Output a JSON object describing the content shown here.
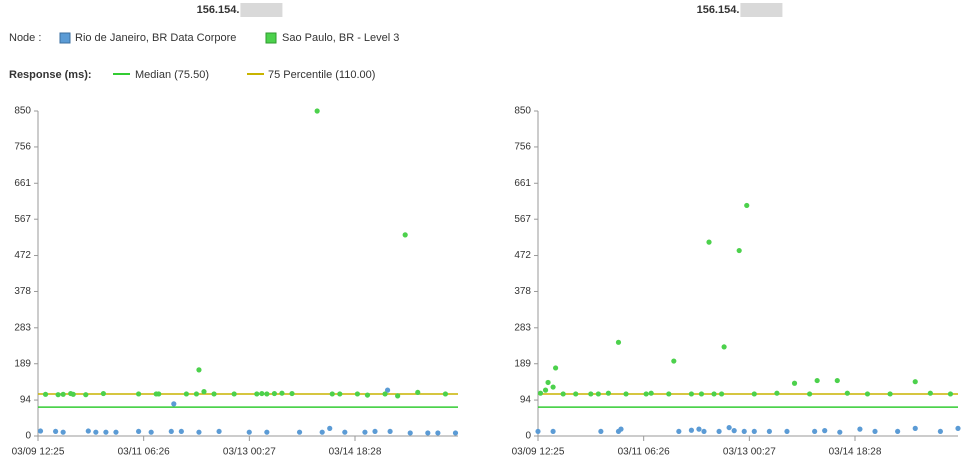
{
  "legend": {
    "node_label": "Node :",
    "response_label": "Response (ms):"
  },
  "reference_lines": [
    {
      "name": "Median (75.50)",
      "value": 75.5,
      "color": "#33cc33"
    },
    {
      "name": "75 Percentile (110.00)",
      "value": 110,
      "color": "#c8b400"
    }
  ],
  "chart_data": [
    {
      "type": "scatter",
      "title": "156.154.",
      "xlim": [
        "03/09 12:25",
        "03/16 11:25"
      ],
      "xticks": [
        "03/09 12:25",
        "03/11 06:26",
        "03/13 00:27",
        "03/14 18:28"
      ],
      "ylim": [
        0,
        850
      ],
      "yticks": [
        0,
        94,
        189,
        283,
        378,
        472,
        567,
        661,
        756,
        850
      ],
      "series": [
        {
          "name": "Rio de Janeiro, BR Data Corpore",
          "color": "#5b9bd5",
          "x": [
            "03/09 13:25",
            "03/09 19:25",
            "03/09 22:25",
            "03/10 08:25",
            "03/10 11:25",
            "03/10 15:25",
            "03/10 19:25",
            "03/11 04:25",
            "03/11 09:25",
            "03/11 17:25",
            "03/11 18:25",
            "03/11 21:25",
            "03/12 04:25",
            "03/12 12:25",
            "03/13 00:25",
            "03/13 07:25",
            "03/13 20:25",
            "03/14 05:25",
            "03/14 08:25",
            "03/14 14:25",
            "03/14 22:25",
            "03/15 02:25",
            "03/15 07:25",
            "03/15 08:25",
            "03/15 16:25",
            "03/15 23:25",
            "03/16 03:25",
            "03/16 10:25"
          ],
          "values": [
            13,
            12,
            10,
            13,
            10,
            10,
            10,
            12,
            10,
            12,
            84,
            12,
            10,
            12,
            10,
            10,
            10,
            10,
            20,
            10,
            10,
            12,
            120,
            12,
            8,
            8,
            8,
            8
          ]
        },
        {
          "name": "Sao Paulo, BR - Level 3",
          "color": "#4cd14c",
          "x": [
            "03/09 15:25",
            "03/09 20:25",
            "03/09 22:25",
            "03/10 01:25",
            "03/10 02:25",
            "03/10 07:25",
            "03/10 14:25",
            "03/11 04:25",
            "03/11 11:25",
            "03/11 12:25",
            "03/11 23:25",
            "03/12 03:25",
            "03/12 04:25",
            "03/12 06:25",
            "03/12 10:25",
            "03/12 18:25",
            "03/13 03:25",
            "03/13 05:25",
            "03/13 07:25",
            "03/13 10:25",
            "03/13 13:25",
            "03/13 17:25",
            "03/14 03:25",
            "03/14 09:25",
            "03/14 12:25",
            "03/14 19:25",
            "03/14 23:25",
            "03/15 06:25",
            "03/15 11:25",
            "03/15 14:25",
            "03/15 19:25",
            "03/16 06:25"
          ],
          "values": [
            109,
            108,
            109,
            111,
            109,
            108,
            111,
            110,
            110,
            110,
            110,
            110,
            173,
            116,
            110,
            110,
            110,
            111,
            110,
            111,
            112,
            111,
            850,
            110,
            110,
            110,
            107,
            110,
            105,
            526,
            114,
            110
          ]
        }
      ]
    },
    {
      "type": "scatter",
      "title": "156.154.",
      "xlim": [
        "03/09 12:25",
        "03/16 11:25"
      ],
      "xticks": [
        "03/09 12:25",
        "03/11 06:26",
        "03/13 00:27",
        "03/14 18:28"
      ],
      "ylim": [
        0,
        850
      ],
      "yticks": [
        0,
        94,
        189,
        283,
        378,
        472,
        567,
        661,
        756,
        850
      ],
      "series": [
        {
          "name": "Rio de Janeiro, BR Data Corpore",
          "color": "#5b9bd5",
          "x": [
            "03/09 12:25",
            "03/09 18:25",
            "03/10 13:25",
            "03/10 20:25",
            "03/10 21:25",
            "03/11 20:25",
            "03/12 01:25",
            "03/12 04:25",
            "03/12 06:25",
            "03/12 12:25",
            "03/12 16:25",
            "03/12 18:25",
            "03/12 22:25",
            "03/13 02:25",
            "03/13 08:25",
            "03/13 15:25",
            "03/14 02:25",
            "03/14 06:25",
            "03/14 12:25",
            "03/14 20:25",
            "03/15 02:25",
            "03/15 11:25",
            "03/15 18:25",
            "03/16 04:25",
            "03/16 11:25"
          ],
          "values": [
            12,
            12,
            12,
            12,
            18,
            12,
            15,
            18,
            12,
            12,
            22,
            14,
            12,
            12,
            12,
            12,
            12,
            14,
            10,
            18,
            12,
            12,
            20,
            12,
            20
          ]
        },
        {
          "name": "Sao Paulo, BR - Level 3",
          "color": "#4cd14c",
          "x": [
            "03/09 13:25",
            "03/09 15:25",
            "03/09 16:25",
            "03/09 18:25",
            "03/09 19:25",
            "03/09 22:25",
            "03/10 03:25",
            "03/10 09:25",
            "03/10 12:25",
            "03/10 16:25",
            "03/10 20:25",
            "03/10 23:25",
            "03/11 07:25",
            "03/11 09:25",
            "03/11 16:25",
            "03/11 18:25",
            "03/12 01:25",
            "03/12 05:25",
            "03/12 08:25",
            "03/12 10:25",
            "03/12 13:25",
            "03/12 14:25",
            "03/12 20:25",
            "03/12 23:25",
            "03/13 02:25",
            "03/13 11:25",
            "03/13 18:25",
            "03/14 00:25",
            "03/14 03:25",
            "03/14 11:25",
            "03/14 15:25",
            "03/14 23:25",
            "03/15 08:25",
            "03/15 18:25",
            "03/16 00:25",
            "03/16 08:25"
          ],
          "values": [
            112,
            120,
            140,
            128,
            178,
            110,
            110,
            110,
            110,
            112,
            245,
            110,
            110,
            112,
            110,
            196,
            110,
            110,
            507,
            110,
            110,
            233,
            485,
            603,
            110,
            112,
            138,
            110,
            145,
            145,
            112,
            110,
            110,
            142,
            112,
            110
          ]
        }
      ]
    }
  ]
}
